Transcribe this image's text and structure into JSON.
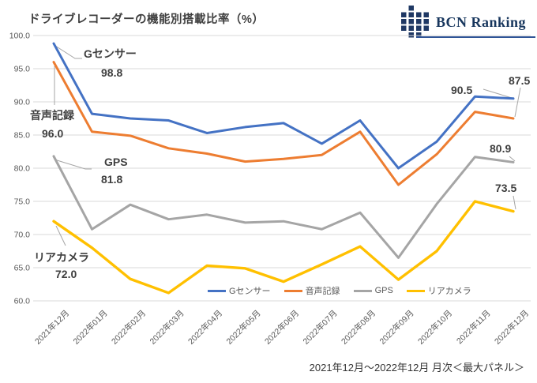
{
  "title": "ドライブレコーダーの機能別搭載比率（%）",
  "logo": {
    "text": "BCN Ranking",
    "color": "#17365d",
    "icon_color": "#1f3864"
  },
  "caption": "2021年12月～2022年12月 月次＜最大パネル＞",
  "chart_data": {
    "type": "line",
    "title": "ドライブレコーダーの機能別搭載比率（%）",
    "categories": [
      "2021年12月",
      "2022年01月",
      "2022年02月",
      "2022年03月",
      "2022年04月",
      "2022年05月",
      "2022年06月",
      "2022年07月",
      "2022年08月",
      "2022年09月",
      "2022年10月",
      "2022年11月",
      "2022年12月"
    ],
    "series": [
      {
        "name": "Gセンサー",
        "color": "#4472c4",
        "values": [
          98.8,
          88.2,
          87.5,
          87.2,
          85.3,
          86.2,
          86.8,
          83.7,
          87.2,
          80.0,
          84.0,
          90.8,
          90.5
        ]
      },
      {
        "name": "音声記録",
        "color": "#ed7d31",
        "values": [
          96.0,
          85.5,
          84.9,
          83.0,
          82.2,
          81.0,
          81.4,
          82.0,
          85.5,
          77.5,
          82.1,
          88.5,
          87.5
        ]
      },
      {
        "name": "GPS",
        "color": "#a5a5a5",
        "values": [
          81.8,
          70.8,
          74.5,
          72.3,
          73.0,
          71.8,
          72.0,
          70.8,
          73.3,
          66.5,
          74.6,
          81.7,
          80.9
        ]
      },
      {
        "name": "リアカメラ",
        "color": "#ffc000",
        "values": [
          72.0,
          68.0,
          63.3,
          61.2,
          65.3,
          64.9,
          62.9,
          65.5,
          68.2,
          63.2,
          67.5,
          75.0,
          73.5
        ]
      }
    ],
    "ylim": [
      60,
      100
    ],
    "ytick_step": 5,
    "ytick_labels": [
      "100.0",
      "95.0",
      "90.0",
      "85.0",
      "80.0",
      "75.0",
      "70.0",
      "65.0",
      "60.0"
    ],
    "grid": true,
    "grid_color": "#d9d9d9",
    "axis_label_color": "#595959",
    "legend_position": "bottom",
    "annotations": {
      "start": [
        {
          "series": "Gセンサー",
          "label": "Gセンサー",
          "value": "98.8"
        },
        {
          "series": "音声記録",
          "label": "音声記録",
          "value": "96.0"
        },
        {
          "series": "GPS",
          "label": "GPS",
          "value": "81.8"
        },
        {
          "series": "リアカメラ",
          "label": "リアカメラ",
          "value": "72.0"
        }
      ],
      "end": [
        {
          "series": "Gセンサー",
          "value": "90.5"
        },
        {
          "series": "音声記録",
          "value": "87.5"
        },
        {
          "series": "GPS",
          "value": "80.9"
        },
        {
          "series": "リアカメラ",
          "value": "73.5"
        }
      ]
    }
  }
}
